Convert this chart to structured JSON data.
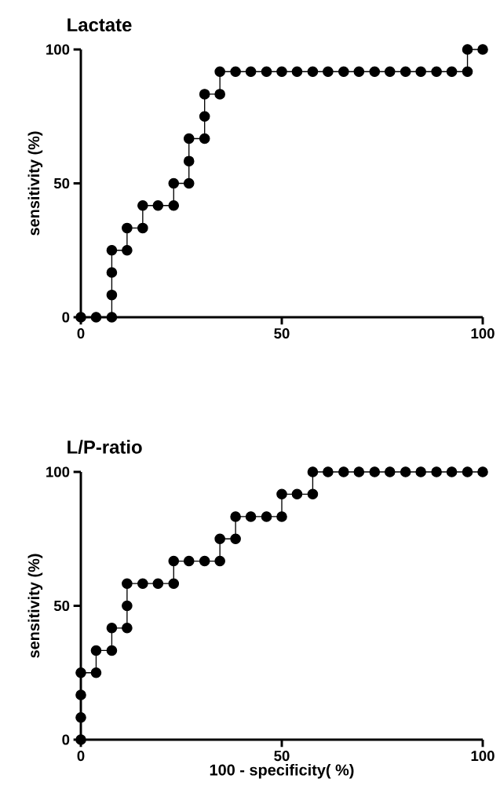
{
  "chart_data": [
    {
      "type": "line",
      "title": "Lactate",
      "ylabel": "sensitivity (%)",
      "color": "#000000",
      "marker": "circle",
      "x": [
        0,
        3.8,
        7.7,
        7.7,
        7.7,
        7.7,
        11.5,
        11.5,
        15.4,
        15.4,
        19.2,
        23.1,
        23.1,
        26.9,
        26.9,
        26.9,
        30.8,
        30.8,
        30.8,
        34.6,
        34.6,
        38.5,
        42.3,
        46.2,
        50,
        53.8,
        57.7,
        61.5,
        65.4,
        69.2,
        73.1,
        76.9,
        80.8,
        84.6,
        88.5,
        92.3,
        96.2,
        96.2,
        100
      ],
      "values": [
        0,
        0,
        0,
        8.3,
        16.7,
        25,
        25,
        33.3,
        33.3,
        41.7,
        41.7,
        41.7,
        50,
        50,
        58.3,
        66.7,
        66.7,
        75,
        83.3,
        83.3,
        91.7,
        91.7,
        91.7,
        91.7,
        91.7,
        91.7,
        91.7,
        91.7,
        91.7,
        91.7,
        91.7,
        91.7,
        91.7,
        91.7,
        91.7,
        91.7,
        91.7,
        100,
        100
      ],
      "xlim": [
        0,
        100
      ],
      "ylim": [
        0,
        100
      ],
      "xticks": [
        0,
        50,
        100
      ],
      "yticks": [
        0,
        50,
        100
      ]
    },
    {
      "type": "line",
      "title": "L/P-ratio",
      "ylabel": "sensitivity (%)",
      "xlabel": "100 - specificity( %)",
      "color": "#000000",
      "marker": "circle",
      "x": [
        0,
        0,
        0,
        0,
        3.8,
        3.8,
        7.7,
        7.7,
        11.5,
        11.5,
        11.5,
        15.4,
        19.2,
        23.1,
        23.1,
        26.9,
        30.8,
        34.6,
        34.6,
        38.5,
        38.5,
        42.3,
        46.2,
        50,
        50,
        53.8,
        57.7,
        57.7,
        61.5,
        65.4,
        69.2,
        73.1,
        76.9,
        80.8,
        84.6,
        88.5,
        92.3,
        96.2,
        100
      ],
      "values": [
        0,
        8.3,
        16.7,
        25,
        25,
        33.3,
        33.3,
        41.7,
        41.7,
        50,
        58.3,
        58.3,
        58.3,
        58.3,
        66.7,
        66.7,
        66.7,
        66.7,
        75,
        75,
        83.3,
        83.3,
        83.3,
        83.3,
        91.7,
        91.7,
        91.7,
        100,
        100,
        100,
        100,
        100,
        100,
        100,
        100,
        100,
        100,
        100,
        100
      ],
      "xlim": [
        0,
        100
      ],
      "ylim": [
        0,
        100
      ],
      "xticks": [
        0,
        50,
        100
      ],
      "yticks": [
        0,
        50,
        100
      ]
    }
  ]
}
